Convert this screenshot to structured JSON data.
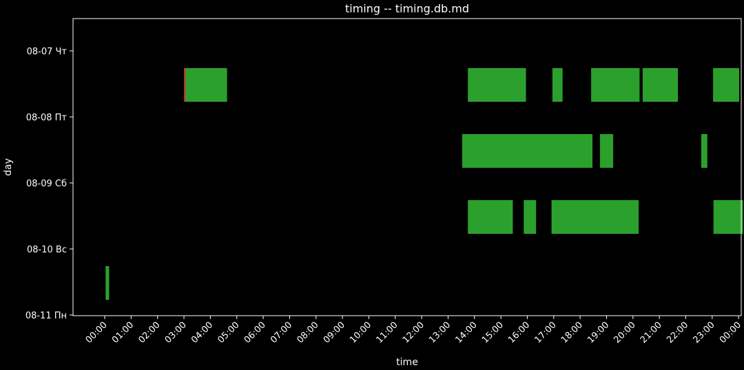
{
  "chart_data": {
    "type": "bar",
    "orientation": "horizontal-timeline",
    "title": "timing -- timing.db.md",
    "xlabel": "time",
    "ylabel": "day",
    "x_ticks": [
      "00:00",
      "01:00",
      "02:00",
      "03:00",
      "04:00",
      "05:00",
      "06:00",
      "07:00",
      "08:00",
      "09:00",
      "10:00",
      "11:00",
      "12:00",
      "13:00",
      "14:00",
      "15:00",
      "16:00",
      "17:00",
      "18:00",
      "19:00",
      "20:00",
      "21:00",
      "22:00",
      "23:00",
      "00:00"
    ],
    "x_range_hours": [
      -1.2,
      24.1
    ],
    "y_ticks": [
      "08-07 Чт",
      "08-08 Пт",
      "08-09 Сб",
      "08-10 Вс",
      "08-11 Пн"
    ],
    "grid": false,
    "bar_color": "#2ca02c",
    "accent_color": "#d62728",
    "bars": [
      {
        "day": "08-07 Чт",
        "start": "03:00",
        "end": "04:38"
      },
      {
        "day": "08-07 Чт",
        "start": "13:45",
        "end": "15:57"
      },
      {
        "day": "08-07 Чт",
        "start": "16:57",
        "end": "17:20"
      },
      {
        "day": "08-07 Чт",
        "start": "18:25",
        "end": "20:15"
      },
      {
        "day": "08-07 Чт",
        "start": "20:22",
        "end": "21:42"
      },
      {
        "day": "08-07 Чт",
        "start": "23:02",
        "end": "23:55"
      },
      {
        "day": "08-07 Чт",
        "start": "23:55",
        "end": "24:00"
      },
      {
        "day": "08-08 Пт",
        "start": "13:32",
        "end": "18:28"
      },
      {
        "day": "08-08 Пт",
        "start": "18:45",
        "end": "19:15"
      },
      {
        "day": "08-08 Пт",
        "start": "22:35",
        "end": "22:49"
      },
      {
        "day": "08-09 Сб",
        "start": "13:45",
        "end": "15:27"
      },
      {
        "day": "08-09 Сб",
        "start": "15:52",
        "end": "16:20"
      },
      {
        "day": "08-09 Сб",
        "start": "16:55",
        "end": "20:13"
      },
      {
        "day": "08-09 Сб",
        "start": "23:03",
        "end": "24:10"
      },
      {
        "day": "08-10 Вс",
        "start": "00:02",
        "end": "00:10"
      }
    ],
    "accent_marks": [
      {
        "day": "08-07 Чт",
        "time": "03:00"
      }
    ]
  }
}
